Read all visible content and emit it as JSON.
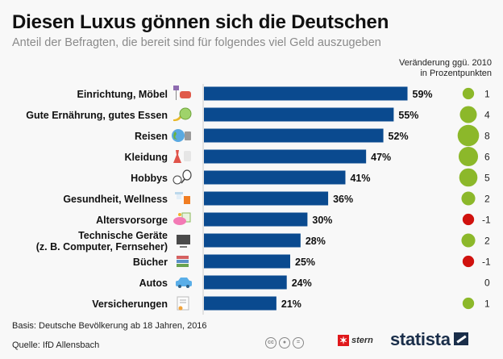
{
  "header": {
    "title": "Diesen Luxus gönnen sich die Deutschen",
    "subtitle": "Anteil der Befragten, die bereit sind für folgendes viel Geld auszugeben"
  },
  "change_header": {
    "line1": "Veränderung ggü. 2010",
    "line2": "in Prozentpunkten"
  },
  "colors": {
    "bar": "#0a4a8f",
    "positive": "#8cb82a",
    "negative": "#d0120e",
    "axis": "#cccccc"
  },
  "chart_data": {
    "type": "bar",
    "orientation": "horizontal",
    "title": "Diesen Luxus gönnen sich die Deutschen",
    "subtitle": "Anteil der Befragten, die bereit sind für folgendes viel Geld auszugeben",
    "xlabel": "",
    "ylabel": "",
    "value_suffix": "%",
    "categories": [
      {
        "label": [
          "Einrichtung, Möbel"
        ],
        "icon": "lamp-sofa-icon"
      },
      {
        "label": [
          "Gute Ernährung, gutes Essen"
        ],
        "icon": "banana-apple-icon"
      },
      {
        "label": [
          "Reisen"
        ],
        "icon": "globe-suitcase-icon"
      },
      {
        "label": [
          "Kleidung"
        ],
        "icon": "dress-shirt-icon"
      },
      {
        "label": [
          "Hobbys"
        ],
        "icon": "ball-racket-icon"
      },
      {
        "label": [
          "Gesundheit, Wellness"
        ],
        "icon": "shower-towel-icon"
      },
      {
        "label": [
          "Altersvorsorge"
        ],
        "icon": "piggy-bank-icon"
      },
      {
        "label": [
          "Technische Geräte",
          "(z. B. Computer, Fernseher)"
        ],
        "icon": "tv-icon"
      },
      {
        "label": [
          "Bücher"
        ],
        "icon": "books-icon"
      },
      {
        "label": [
          "Autos"
        ],
        "icon": "car-icon"
      },
      {
        "label": [
          "Versicherungen"
        ],
        "icon": "certificate-icon"
      }
    ],
    "series": [
      {
        "name": "Anteil der Befragten (%)",
        "values": [
          59,
          55,
          52,
          47,
          41,
          36,
          30,
          28,
          25,
          24,
          21
        ]
      },
      {
        "name": "Veränderung ggü. 2010 in Prozentpunkten",
        "values": [
          1,
          4,
          8,
          6,
          5,
          2,
          -1,
          2,
          -1,
          0,
          1
        ]
      }
    ],
    "xlim": [
      0,
      60
    ],
    "grid": false,
    "legend": "none"
  },
  "footer": {
    "basis": "Basis: Deutsche Bevölkerung ab 18 Jahren, 2016",
    "source": "Quelle: IfD Allensbach",
    "cc_labels": [
      "cc",
      "by",
      "="
    ],
    "stern_label": "stern",
    "statista_label": "statista"
  }
}
